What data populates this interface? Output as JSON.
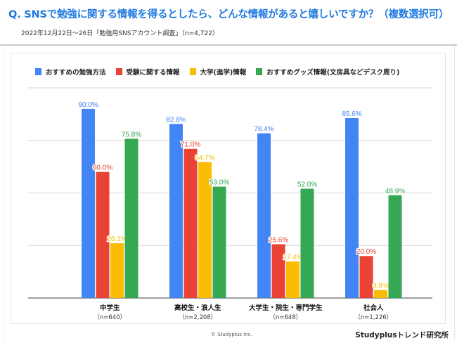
{
  "header": {
    "title": "Q. SNSで勉強に関する情報を得るとしたら、どんな情報があると嬉しいですか？（複数選択可）",
    "subtitle": "2022年12月22日～26日「勉強用SNSアカウント調査」（n=4,722）"
  },
  "footer": {
    "copyright": "© Studyplus Inc.",
    "brand": "Studyplusトレンド研究所"
  },
  "chart_data": {
    "type": "bar",
    "title": "Q. SNSで勉強に関する情報を得るとしたら、どんな情報があると嬉しいですか？（複数選択可）",
    "xlabel": "",
    "ylabel": "",
    "ylim": [
      0,
      100
    ],
    "gridlines": [
      0,
      25,
      50,
      75,
      100
    ],
    "grid": true,
    "legend_position": "top",
    "categories": [
      "中学生",
      "高校生・浪人生",
      "大学生・院生・専門学生",
      "社会人"
    ],
    "category_n": [
      "（n=640）",
      "（n=2,208）",
      "（n=648）",
      "（n=1,226）"
    ],
    "series": [
      {
        "name": "おすすめの勉強方法",
        "color": "#4285f4",
        "values": [
          90.0,
          82.8,
          78.4,
          85.6
        ],
        "labels": [
          "90.0%",
          "82.8%",
          "78.4%",
          "85.6%"
        ]
      },
      {
        "name": "受験に関する情報",
        "color": "#ea4335",
        "values": [
          60.0,
          71.0,
          25.6,
          20.0
        ],
        "labels": [
          "60.0%",
          "71.0%",
          "25.6%",
          "20.0%"
        ]
      },
      {
        "name": "大学(進学)情報",
        "color": "#fbbc04",
        "values": [
          26.1,
          64.7,
          17.4,
          3.8
        ],
        "labels": [
          "26.1%",
          "64.7%",
          "17.4%",
          "3.8%"
        ]
      },
      {
        "name": "おすすめグッズ情報(文房具などデスク周り)",
        "color": "#34a853",
        "values": [
          75.8,
          53.0,
          52.0,
          48.9
        ],
        "labels": [
          "75.8%",
          "53.0%",
          "52.0%",
          "48.9%"
        ]
      }
    ]
  }
}
